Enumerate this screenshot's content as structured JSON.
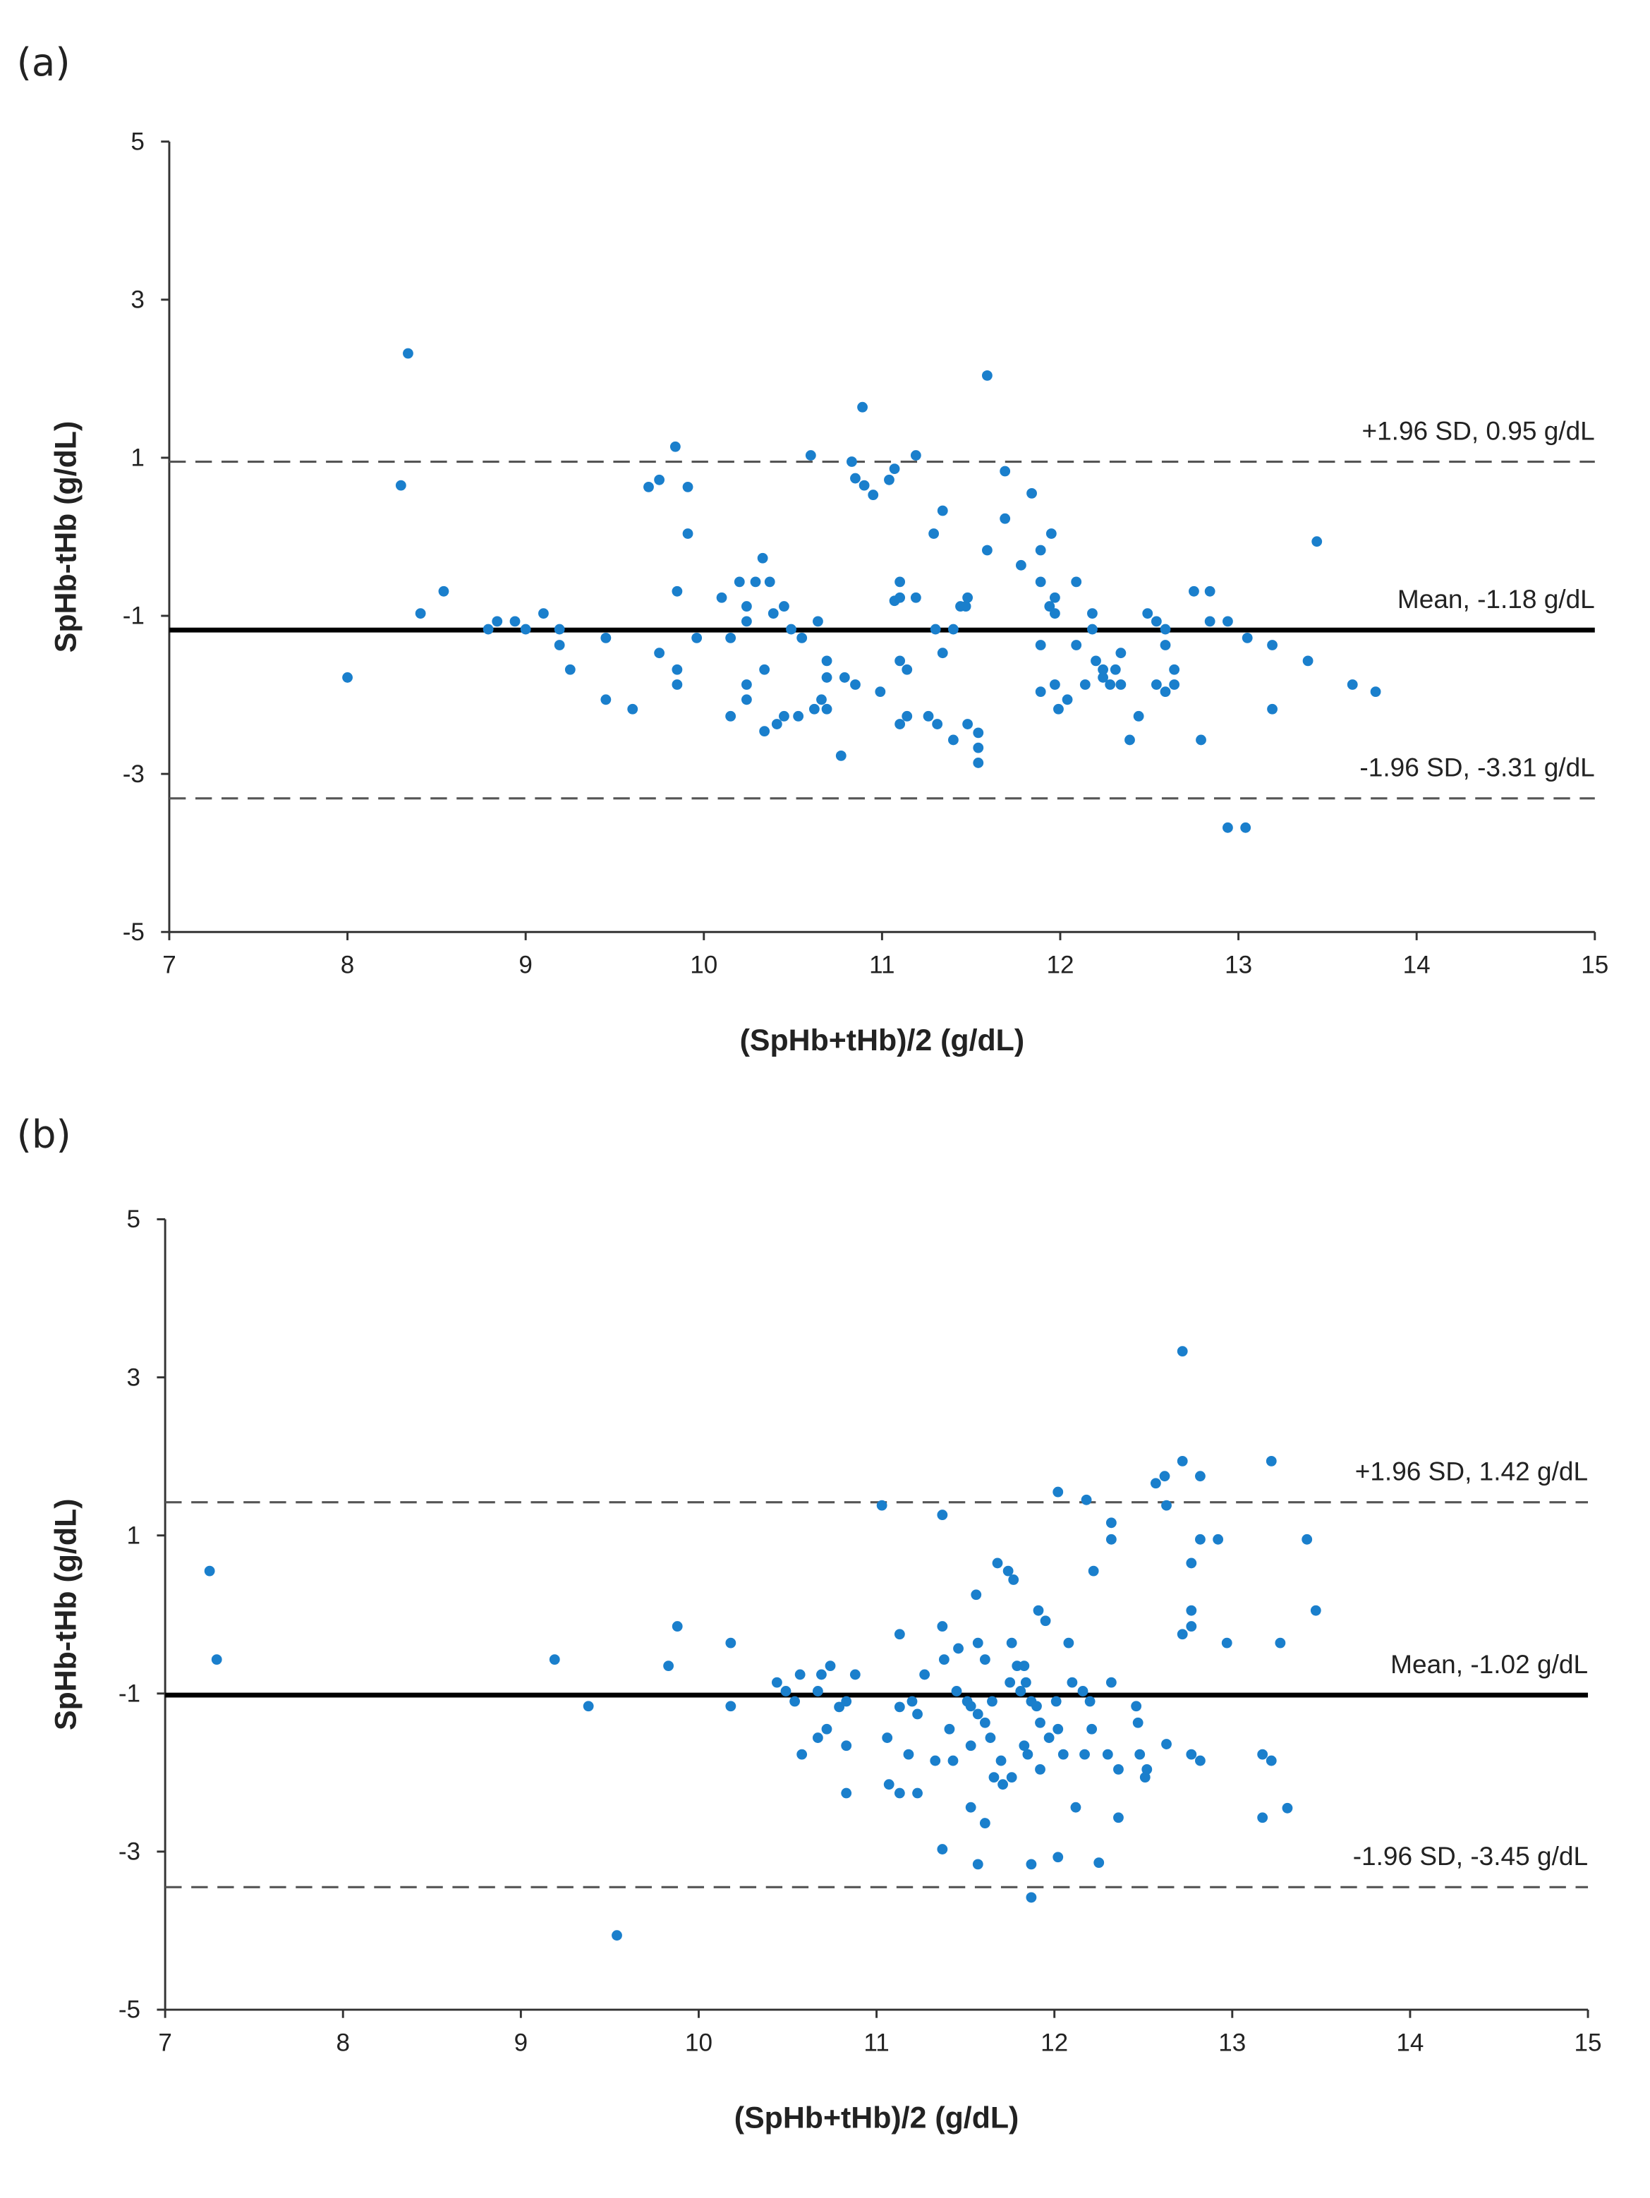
{
  "chart_data": [
    {
      "type": "scatter",
      "panel_label": "(a)",
      "xlabel": "(SpHb+tHb)/2 (g/dL)",
      "ylabel": "SpHb-tHb (g/dL)",
      "xlim": [
        7,
        15
      ],
      "xticks": [
        7,
        8,
        9,
        10,
        11,
        12,
        13,
        14,
        15
      ],
      "ylim": [
        -5,
        5
      ],
      "yticks": [
        -5,
        -3,
        -1,
        1,
        3,
        5
      ],
      "color": "#1a7fcc",
      "lines": [
        {
          "label": "+1.96 SD, 0.95 g/dL",
          "value": 0.95,
          "style": "dashed"
        },
        {
          "label": "Mean, -1.18 g/dL",
          "value": -1.18,
          "style": "solid"
        },
        {
          "label": "-1.96 SD, -3.31 g/dL",
          "value": -3.31,
          "style": "dashed"
        }
      ],
      "x": [
        8.0,
        8.34,
        8.3,
        8.41,
        8.54,
        8.79,
        8.84,
        8.94,
        9.0,
        9.1,
        9.19,
        9.19,
        9.25,
        9.45,
        9.45,
        9.6,
        9.69,
        9.75,
        9.75,
        9.84,
        9.85,
        9.85,
        9.85,
        9.91,
        9.91,
        9.96,
        10.1,
        10.15,
        10.15,
        10.2,
        10.24,
        10.24,
        10.24,
        10.24,
        10.29,
        10.33,
        10.34,
        10.34,
        10.37,
        10.39,
        10.41,
        10.45,
        10.45,
        10.49,
        10.53,
        10.55,
        10.6,
        10.62,
        10.64,
        10.66,
        10.69,
        10.69,
        10.69,
        10.77,
        10.79,
        10.83,
        10.85,
        10.85,
        10.89,
        10.9,
        10.95,
        10.99,
        11.04,
        11.07,
        11.07,
        11.1,
        11.1,
        11.1,
        11.1,
        11.14,
        11.14,
        11.19,
        11.19,
        11.26,
        11.29,
        11.3,
        11.31,
        11.34,
        11.34,
        11.4,
        11.4,
        11.44,
        11.47,
        11.48,
        11.48,
        11.54,
        11.54,
        11.54,
        11.59,
        11.59,
        11.69,
        11.69,
        11.78,
        11.84,
        11.89,
        11.89,
        11.89,
        11.89,
        11.94,
        11.95,
        11.97,
        11.97,
        11.97,
        11.99,
        12.04,
        12.09,
        12.09,
        12.14,
        12.18,
        12.18,
        12.2,
        12.24,
        12.24,
        12.28,
        12.31,
        12.34,
        12.34,
        12.39,
        12.44,
        12.49,
        12.54,
        12.54,
        12.59,
        12.59,
        12.59,
        12.64,
        12.64,
        12.75,
        12.79,
        12.84,
        12.84,
        12.94,
        12.94,
        13.04,
        13.05,
        13.19,
        13.19,
        13.39,
        13.44,
        13.64,
        13.77
      ],
      "values": [
        -1.78,
        2.32,
        0.65,
        -0.97,
        -0.69,
        -1.17,
        -1.07,
        -1.07,
        -1.17,
        -0.97,
        -1.17,
        -1.37,
        -1.68,
        -1.28,
        -2.06,
        -2.18,
        0.63,
        0.72,
        -1.47,
        1.14,
        -0.69,
        -1.68,
        -1.87,
        0.63,
        0.04,
        -1.28,
        -0.77,
        -1.28,
        -2.27,
        -0.57,
        -0.88,
        -1.07,
        -1.87,
        -2.06,
        -0.57,
        -0.27,
        -1.68,
        -2.46,
        -0.57,
        -0.97,
        -2.37,
        -0.88,
        -2.27,
        -1.17,
        -2.27,
        -1.28,
        1.03,
        -2.18,
        -1.07,
        -2.06,
        -1.57,
        -1.78,
        -2.18,
        -2.77,
        -1.78,
        0.95,
        0.74,
        -1.87,
        1.64,
        0.65,
        0.53,
        -1.96,
        0.72,
        -0.81,
        0.86,
        -0.57,
        -0.77,
        -1.57,
        -2.37,
        -1.68,
        -2.27,
        1.03,
        -0.77,
        -2.27,
        0.04,
        -1.17,
        -2.37,
        0.33,
        -1.47,
        -1.17,
        -2.57,
        -0.88,
        -0.88,
        -0.77,
        -2.37,
        -2.48,
        -2.67,
        -2.86,
        2.04,
        -0.17,
        0.83,
        0.23,
        -0.36,
        0.55,
        -0.17,
        -0.57,
        -1.37,
        -1.96,
        -0.88,
        0.04,
        -0.77,
        -0.97,
        -1.87,
        -2.18,
        -2.06,
        -0.57,
        -1.37,
        -1.87,
        -0.97,
        -1.17,
        -1.57,
        -1.78,
        -1.68,
        -1.87,
        -1.68,
        -1.47,
        -1.87,
        -2.57,
        -2.27,
        -0.97,
        -1.07,
        -1.87,
        -1.17,
        -1.37,
        -1.96,
        -1.68,
        -1.87,
        -0.69,
        -2.57,
        -0.69,
        -1.07,
        -1.07,
        -3.68,
        -3.68,
        -1.28,
        -1.37,
        -2.18,
        -1.57,
        -0.06,
        -1.87,
        -1.96
      ]
    },
    {
      "type": "scatter",
      "panel_label": "(b)",
      "xlabel": "(SpHb+tHb)/2 (g/dL)",
      "ylabel": "SpHb-tHb (g/dL)",
      "xlim": [
        7,
        15
      ],
      "xticks": [
        7,
        8,
        9,
        10,
        11,
        12,
        13,
        14,
        15
      ],
      "ylim": [
        -5,
        5
      ],
      "yticks": [
        -5,
        -3,
        -1,
        1,
        3,
        5
      ],
      "color": "#1a7fcc",
      "lines": [
        {
          "label": "+1.96 SD, 1.42 g/dL",
          "value": 1.42,
          "style": "dashed"
        },
        {
          "label": "Mean, -1.02 g/dL",
          "value": -1.02,
          "style": "solid"
        },
        {
          "label": "-1.96 SD, -3.45 g/dL",
          "value": -3.45,
          "style": "dashed"
        }
      ],
      "x": [
        7.25,
        7.29,
        9.19,
        9.38,
        9.54,
        9.83,
        9.88,
        10.18,
        10.18,
        10.44,
        10.49,
        10.54,
        10.57,
        10.58,
        10.67,
        10.67,
        10.69,
        10.72,
        10.74,
        10.79,
        10.83,
        10.83,
        10.83,
        10.88,
        11.03,
        11.06,
        11.07,
        11.13,
        11.13,
        11.13,
        11.18,
        11.2,
        11.23,
        11.23,
        11.27,
        11.33,
        11.37,
        11.37,
        11.37,
        11.38,
        11.41,
        11.43,
        11.45,
        11.46,
        11.51,
        11.53,
        11.53,
        11.53,
        11.56,
        11.57,
        11.57,
        11.57,
        11.61,
        11.61,
        11.61,
        11.64,
        11.65,
        11.66,
        11.68,
        11.7,
        11.71,
        11.74,
        11.75,
        11.76,
        11.76,
        11.77,
        11.79,
        11.81,
        11.83,
        11.83,
        11.84,
        11.85,
        11.87,
        11.87,
        11.87,
        11.9,
        11.91,
        11.92,
        11.92,
        11.95,
        11.97,
        12.01,
        12.02,
        12.02,
        12.02,
        12.05,
        12.08,
        12.1,
        12.12,
        12.16,
        12.17,
        12.18,
        12.2,
        12.21,
        12.22,
        12.25,
        12.3,
        12.32,
        12.32,
        12.32,
        12.36,
        12.36,
        12.46,
        12.47,
        12.48,
        12.51,
        12.52,
        12.57,
        12.62,
        12.63,
        12.63,
        12.72,
        12.72,
        12.72,
        12.77,
        12.77,
        12.77,
        12.77,
        12.82,
        12.82,
        12.82,
        12.92,
        12.97,
        13.17,
        13.17,
        13.22,
        13.22,
        13.27,
        13.31,
        13.42,
        13.47
      ],
      "values": [
        0.55,
        -0.57,
        -0.57,
        -1.16,
        -4.06,
        -0.65,
        -0.15,
        -0.36,
        -1.16,
        -0.86,
        -0.97,
        -1.1,
        -0.76,
        -1.77,
        -0.97,
        -1.56,
        -0.76,
        -1.45,
        -0.65,
        -1.17,
        -1.1,
        -1.66,
        -2.26,
        -0.76,
        1.38,
        -1.56,
        -2.15,
        -0.25,
        -1.17,
        -2.26,
        -1.77,
        -1.1,
        -1.26,
        -2.26,
        -0.76,
        -1.85,
        1.26,
        -0.15,
        -2.97,
        -0.57,
        -1.45,
        -1.85,
        -0.97,
        -0.43,
        -1.1,
        -1.16,
        -2.44,
        -1.66,
        0.25,
        -1.26,
        -3.16,
        -0.36,
        -1.37,
        -0.57,
        -2.64,
        -1.56,
        -1.1,
        -2.06,
        0.65,
        -1.85,
        -2.15,
        0.55,
        -0.86,
        -2.06,
        -0.36,
        0.44,
        -0.65,
        -0.97,
        -1.66,
        -0.65,
        -0.86,
        -1.77,
        -3.16,
        -3.58,
        -1.1,
        -1.16,
        0.05,
        -1.37,
        -1.96,
        -0.08,
        -1.56,
        -1.1,
        -1.45,
        -3.07,
        1.55,
        -1.77,
        -0.36,
        -0.86,
        -2.44,
        -0.97,
        -1.77,
        1.45,
        -1.1,
        -1.45,
        0.55,
        -3.14,
        -1.77,
        1.16,
        0.95,
        -0.86,
        -1.96,
        -2.57,
        -1.16,
        -1.37,
        -1.77,
        -2.06,
        -1.96,
        1.66,
        1.75,
        -1.64,
        1.38,
        3.33,
        1.94,
        -0.25,
        -0.15,
        0.65,
        0.05,
        -1.77,
        1.75,
        0.95,
        -1.85,
        0.95,
        -0.36,
        -1.77,
        -2.57,
        1.94,
        -1.85,
        -0.36,
        -2.45,
        0.95,
        0.05
      ]
    }
  ]
}
